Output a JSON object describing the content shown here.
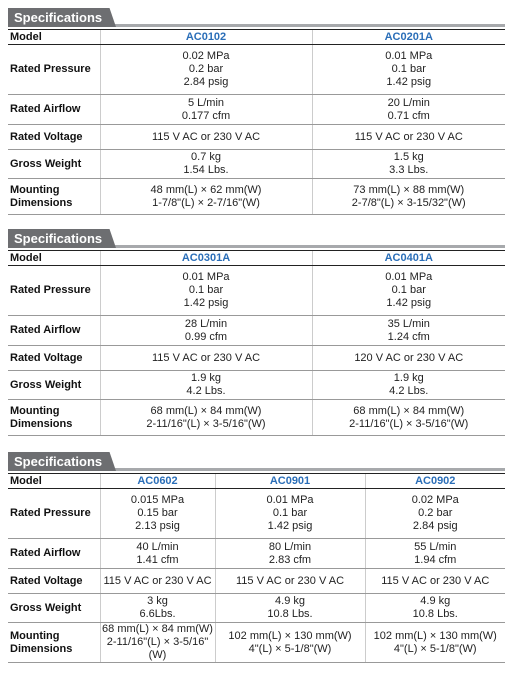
{
  "sections": [
    {
      "title": "Specifications",
      "model_label": "Model",
      "models": [
        "AC0102",
        "AC0201A"
      ],
      "rows": [
        {
          "label": "Rated Pressure",
          "cells": [
            [
              "0.02 MPa",
              "0.2 bar",
              "2.84 psig"
            ],
            [
              "0.01 MPa",
              "0.1 bar",
              "1.42 psig"
            ]
          ]
        },
        {
          "label": "Rated Airflow",
          "cells": [
            [
              "5 L/min",
              "0.177 cfm"
            ],
            [
              "20 L/min",
              "0.71 cfm"
            ]
          ]
        },
        {
          "label": "Rated Voltage",
          "cells": [
            [
              "115 V AC or 230 V AC"
            ],
            [
              "115 V AC or 230 V AC"
            ]
          ]
        },
        {
          "label": "Gross Weight",
          "cells": [
            [
              "0.7 kg",
              "1.54 Lbs."
            ],
            [
              "1.5 kg",
              "3.3 Lbs."
            ]
          ]
        },
        {
          "label": "Mounting Dimensions",
          "cells": [
            [
              "48 mm(L) × 62 mm(W)",
              "1-7/8\"(L) × 2-7/16\"(W)"
            ],
            [
              "73 mm(L) × 88 mm(W)",
              "2-7/8\"(L) × 3-15/32\"(W)"
            ]
          ]
        }
      ]
    },
    {
      "title": "Specifications",
      "model_label": "Model",
      "models": [
        "AC0301A",
        "AC0401A"
      ],
      "rows": [
        {
          "label": "Rated Pressure",
          "cells": [
            [
              "0.01 MPa",
              "0.1 bar",
              "1.42 psig"
            ],
            [
              "0.01 MPa",
              "0.1 bar",
              "1.42 psig"
            ]
          ]
        },
        {
          "label": "Rated Airflow",
          "cells": [
            [
              "28 L/min",
              "0.99 cfm"
            ],
            [
              "35 L/min",
              "1.24 cfm"
            ]
          ]
        },
        {
          "label": "Rated Voltage",
          "cells": [
            [
              "115 V AC or 230 V AC"
            ],
            [
              "120 V AC or 230 V AC"
            ]
          ]
        },
        {
          "label": "Gross Weight",
          "cells": [
            [
              "1.9 kg",
              "4.2 Lbs."
            ],
            [
              "1.9 kg",
              "4.2 Lbs."
            ]
          ]
        },
        {
          "label": "Mounting Dimensions",
          "cells": [
            [
              "68 mm(L) × 84 mm(W)",
              "2-11/16\"(L) × 3-5/16\"(W)"
            ],
            [
              "68 mm(L) × 84 mm(W)",
              "2-11/16\"(L) × 3-5/16\"(W)"
            ]
          ]
        }
      ]
    },
    {
      "title": "Specifications",
      "model_label": "Model",
      "models": [
        "AC0602",
        "AC0901",
        "AC0902"
      ],
      "rows": [
        {
          "label": "Rated Pressure",
          "cells": [
            [
              "0.015 MPa",
              "0.15 bar",
              "2.13 psig"
            ],
            [
              "0.01 MPa",
              "0.1 bar",
              "1.42 psig"
            ],
            [
              "0.02 MPa",
              "0.2 bar",
              "2.84 psig"
            ]
          ]
        },
        {
          "label": "Rated Airflow",
          "cells": [
            [
              "40 L/min",
              "1.41 cfm"
            ],
            [
              "80 L/min",
              "2.83 cfm"
            ],
            [
              "55 L/min",
              "1.94 cfm"
            ]
          ]
        },
        {
          "label": "Rated Voltage",
          "cells": [
            [
              "115 V AC or 230 V AC"
            ],
            [
              "115 V AC or 230 V AC"
            ],
            [
              "115 V AC or 230 V AC"
            ]
          ]
        },
        {
          "label": "Gross Weight",
          "cells": [
            [
              "3 kg",
              "6.6Lbs."
            ],
            [
              "4.9 kg",
              "10.8 Lbs."
            ],
            [
              "4.9 kg",
              "10.8 Lbs."
            ]
          ]
        },
        {
          "label": "Mounting Dimensions",
          "cells": [
            [
              "68 mm(L) × 84 mm(W)",
              "2-11/16\"(L) × 3-5/16\"(W)"
            ],
            [
              "102 mm(L) × 130 mm(W)",
              "4\"(L) × 5-1/8\"(W)"
            ],
            [
              "102 mm(L) × 130 mm(W)",
              "4\"(L) × 5-1/8\"(W)"
            ]
          ]
        }
      ]
    }
  ]
}
